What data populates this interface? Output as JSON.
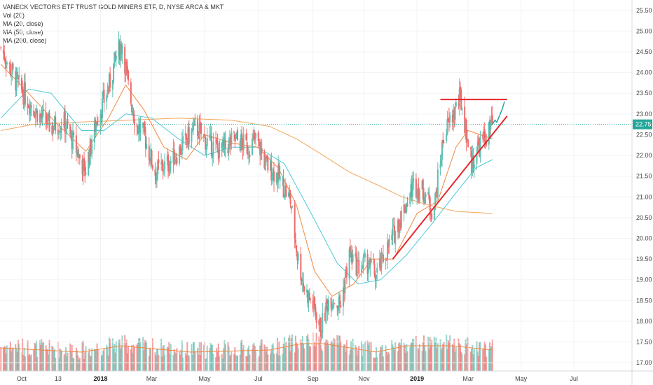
{
  "legend": {
    "title": "VANECK VECTORS ETF TRUST GOLD MINERS ETF, D, NYSE ARCA & MKT",
    "lines": [
      "Vol (20)",
      "MA (20, close)",
      "MA (50, close)",
      "MA (200, close)"
    ]
  },
  "colors": {
    "up": "#5fbfb0",
    "down": "#ef6a6a",
    "ma20": "#f0883e",
    "ma50": "#4ec9d6",
    "ma200": "#f2a65a",
    "vol_ma": "#f0883e",
    "trendline": "#e8262b",
    "last_price_line": "#26a69a",
    "projection": "#26a69a"
  },
  "last_price": {
    "value": 22.75,
    "label": "22.75"
  },
  "chart_data": {
    "type": "candlestick",
    "y_axis": {
      "ylim": [
        16.8,
        25.75
      ],
      "ticks": [
        "17.00",
        "17.50",
        "18.00",
        "18.50",
        "19.00",
        "19.50",
        "20.00",
        "20.50",
        "21.00",
        "21.50",
        "22.00",
        "22.50",
        "23.00",
        "23.50",
        "24.00",
        "24.50",
        "25.00",
        "25.50"
      ]
    },
    "x_axis": {
      "labels": [
        {
          "label": "Oct",
          "bold": false,
          "x": "2017-10-02"
        },
        {
          "label": "13",
          "bold": false,
          "x": "2017-11-13"
        },
        {
          "label": "2018",
          "bold": true,
          "x": "2018-01-01"
        },
        {
          "label": "Mar",
          "bold": false,
          "x": "2018-03-01"
        },
        {
          "label": "May",
          "bold": false,
          "x": "2018-05-01"
        },
        {
          "label": "Jul",
          "bold": false,
          "x": "2018-07-02"
        },
        {
          "label": "Sep",
          "bold": false,
          "x": "2018-09-03"
        },
        {
          "label": "Nov",
          "bold": false,
          "x": "2018-11-01"
        },
        {
          "label": "2019",
          "bold": true,
          "x": "2019-01-01"
        },
        {
          "label": "Mar",
          "bold": false,
          "x": "2019-03-01"
        },
        {
          "label": "May",
          "bold": false,
          "x": "2019-05-01"
        },
        {
          "label": "Jul",
          "bold": false,
          "x": "2019-07-01"
        }
      ]
    },
    "range": {
      "start": "2017-09-07",
      "end": "2019-09-06"
    },
    "price_path": [
      {
        "x": "2017-09-08",
        "y": 24.6
      },
      {
        "x": "2017-09-25",
        "y": 23.8
      },
      {
        "x": "2017-10-10",
        "y": 23.3
      },
      {
        "x": "2017-10-25",
        "y": 22.9
      },
      {
        "x": "2017-11-05",
        "y": 22.7
      },
      {
        "x": "2017-11-20",
        "y": 22.8
      },
      {
        "x": "2017-12-05",
        "y": 22.1
      },
      {
        "x": "2017-12-14",
        "y": 21.6
      },
      {
        "x": "2017-12-28",
        "y": 22.9
      },
      {
        "x": "2018-01-10",
        "y": 23.6
      },
      {
        "x": "2018-01-19",
        "y": 24.4
      },
      {
        "x": "2018-01-26",
        "y": 24.7
      },
      {
        "x": "2018-02-03",
        "y": 23.5
      },
      {
        "x": "2018-02-12",
        "y": 22.7
      },
      {
        "x": "2018-02-20",
        "y": 22.5
      },
      {
        "x": "2018-03-05",
        "y": 21.6
      },
      {
        "x": "2018-03-20",
        "y": 21.8
      },
      {
        "x": "2018-04-05",
        "y": 22.2
      },
      {
        "x": "2018-04-20",
        "y": 22.7
      },
      {
        "x": "2018-05-05",
        "y": 22.3
      },
      {
        "x": "2018-05-20",
        "y": 22.1
      },
      {
        "x": "2018-06-05",
        "y": 22.4
      },
      {
        "x": "2018-06-20",
        "y": 22.2
      },
      {
        "x": "2018-06-30",
        "y": 22.4
      },
      {
        "x": "2018-07-10",
        "y": 21.8
      },
      {
        "x": "2018-07-25",
        "y": 21.5
      },
      {
        "x": "2018-08-08",
        "y": 20.9
      },
      {
        "x": "2018-08-16",
        "y": 19.6
      },
      {
        "x": "2018-08-24",
        "y": 18.8
      },
      {
        "x": "2018-09-05",
        "y": 18.3
      },
      {
        "x": "2018-09-12",
        "y": 17.8
      },
      {
        "x": "2018-09-22",
        "y": 18.6
      },
      {
        "x": "2018-10-05",
        "y": 18.4
      },
      {
        "x": "2018-10-15",
        "y": 19.6
      },
      {
        "x": "2018-10-25",
        "y": 19.3
      },
      {
        "x": "2018-11-05",
        "y": 19.4
      },
      {
        "x": "2018-11-15",
        "y": 19.1
      },
      {
        "x": "2018-11-25",
        "y": 19.6
      },
      {
        "x": "2018-12-05",
        "y": 20.1
      },
      {
        "x": "2018-12-15",
        "y": 20.6
      },
      {
        "x": "2018-12-28",
        "y": 21.3
      },
      {
        "x": "2019-01-10",
        "y": 21.1
      },
      {
        "x": "2019-01-20",
        "y": 20.6
      },
      {
        "x": "2019-02-01",
        "y": 22.5
      },
      {
        "x": "2019-02-10",
        "y": 22.9
      },
      {
        "x": "2019-02-20",
        "y": 23.4
      },
      {
        "x": "2019-02-25",
        "y": 22.8
      },
      {
        "x": "2019-03-05",
        "y": 21.8
      },
      {
        "x": "2019-03-12",
        "y": 22.2
      },
      {
        "x": "2019-03-20",
        "y": 22.4
      },
      {
        "x": "2019-03-29",
        "y": 22.75
      }
    ],
    "ma20": [
      {
        "x": "2017-09-08",
        "y": 24.2
      },
      {
        "x": "2017-10-10",
        "y": 23.5
      },
      {
        "x": "2017-11-10",
        "y": 22.8
      },
      {
        "x": "2017-12-15",
        "y": 22.1
      },
      {
        "x": "2018-01-10",
        "y": 22.9
      },
      {
        "x": "2018-01-30",
        "y": 23.7
      },
      {
        "x": "2018-02-20",
        "y": 23.1
      },
      {
        "x": "2018-03-15",
        "y": 22.2
      },
      {
        "x": "2018-04-10",
        "y": 21.9
      },
      {
        "x": "2018-05-01",
        "y": 22.5
      },
      {
        "x": "2018-06-01",
        "y": 22.3
      },
      {
        "x": "2018-07-01",
        "y": 22.2
      },
      {
        "x": "2018-07-25",
        "y": 21.7
      },
      {
        "x": "2018-08-15",
        "y": 20.8
      },
      {
        "x": "2018-09-05",
        "y": 19.2
      },
      {
        "x": "2018-09-25",
        "y": 18.6
      },
      {
        "x": "2018-10-20",
        "y": 18.9
      },
      {
        "x": "2018-11-10",
        "y": 19.5
      },
      {
        "x": "2018-12-05",
        "y": 19.5
      },
      {
        "x": "2019-01-01",
        "y": 20.6
      },
      {
        "x": "2019-01-25",
        "y": 20.9
      },
      {
        "x": "2019-02-15",
        "y": 22.2
      },
      {
        "x": "2019-03-01",
        "y": 22.6
      },
      {
        "x": "2019-03-29",
        "y": 22.4
      }
    ],
    "ma50": [
      {
        "x": "2017-09-08",
        "y": 22.9
      },
      {
        "x": "2017-10-10",
        "y": 23.6
      },
      {
        "x": "2017-11-05",
        "y": 23.5
      },
      {
        "x": "2017-12-10",
        "y": 22.6
      },
      {
        "x": "2018-01-05",
        "y": 22.6
      },
      {
        "x": "2018-01-30",
        "y": 23.0
      },
      {
        "x": "2018-03-01",
        "y": 22.9
      },
      {
        "x": "2018-04-01",
        "y": 22.4
      },
      {
        "x": "2018-05-01",
        "y": 22.0
      },
      {
        "x": "2018-06-01",
        "y": 22.2
      },
      {
        "x": "2018-07-01",
        "y": 22.2
      },
      {
        "x": "2018-08-01",
        "y": 21.8
      },
      {
        "x": "2018-09-01",
        "y": 20.6
      },
      {
        "x": "2018-10-01",
        "y": 19.4
      },
      {
        "x": "2018-10-25",
        "y": 18.9
      },
      {
        "x": "2018-11-20",
        "y": 19.0
      },
      {
        "x": "2018-12-20",
        "y": 19.6
      },
      {
        "x": "2019-01-20",
        "y": 20.4
      },
      {
        "x": "2019-02-15",
        "y": 21.1
      },
      {
        "x": "2019-03-10",
        "y": 21.7
      },
      {
        "x": "2019-03-29",
        "y": 21.9
      }
    ],
    "ma200": [
      {
        "x": "2017-09-08",
        "y": 22.6
      },
      {
        "x": "2017-10-15",
        "y": 22.75
      },
      {
        "x": "2017-12-01",
        "y": 22.8
      },
      {
        "x": "2018-02-01",
        "y": 22.85
      },
      {
        "x": "2018-04-01",
        "y": 22.9
      },
      {
        "x": "2018-06-01",
        "y": 22.85
      },
      {
        "x": "2018-07-15",
        "y": 22.7
      },
      {
        "x": "2018-08-15",
        "y": 22.4
      },
      {
        "x": "2018-09-15",
        "y": 22.0
      },
      {
        "x": "2018-10-15",
        "y": 21.6
      },
      {
        "x": "2018-11-15",
        "y": 21.3
      },
      {
        "x": "2018-12-15",
        "y": 21.0
      },
      {
        "x": "2019-01-15",
        "y": 20.8
      },
      {
        "x": "2019-02-15",
        "y": 20.65
      },
      {
        "x": "2019-03-29",
        "y": 20.6
      }
    ],
    "volume_profile": [
      {
        "x": "2017-09-08",
        "y": 0.55
      },
      {
        "x": "2017-12-10",
        "y": 0.45
      },
      {
        "x": "2018-01-25",
        "y": 0.6
      },
      {
        "x": "2018-04-15",
        "y": 0.45
      },
      {
        "x": "2018-07-15",
        "y": 0.5
      },
      {
        "x": "2018-08-20",
        "y": 0.65
      },
      {
        "x": "2018-09-15",
        "y": 0.65
      },
      {
        "x": "2018-11-15",
        "y": 0.45
      },
      {
        "x": "2018-12-20",
        "y": 0.6
      },
      {
        "x": "2019-02-10",
        "y": 0.6
      },
      {
        "x": "2019-03-29",
        "y": 0.5
      }
    ],
    "resistance_line": {
      "x1": "2019-01-28",
      "x2": "2019-04-15",
      "y": 23.35
    },
    "support_trendline": {
      "x1": "2018-12-04",
      "y1": 19.5,
      "x2": "2019-04-15",
      "y2": 22.95
    },
    "projection_path": [
      {
        "x": "2019-03-29",
        "y": 22.75
      },
      {
        "x": "2019-04-01",
        "y": 22.85
      },
      {
        "x": "2019-04-03",
        "y": 22.8
      },
      {
        "x": "2019-04-06",
        "y": 22.95
      },
      {
        "x": "2019-04-09",
        "y": 23.1
      },
      {
        "x": "2019-04-12",
        "y": 23.3
      }
    ]
  }
}
